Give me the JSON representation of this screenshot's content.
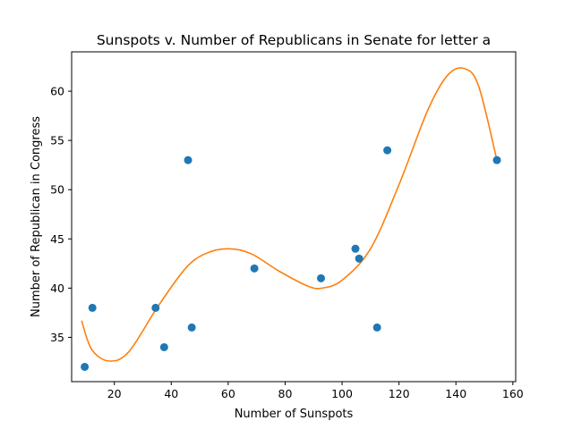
{
  "chart_data": {
    "type": "scatter",
    "title": "Sunspots v. Number of Republicans in Senate for letter a",
    "xlabel": "Number of Sunspots",
    "ylabel": "Number of Republican in Congress",
    "xlim": [
      5,
      161
    ],
    "ylim": [
      30.5,
      64
    ],
    "xticks": [
      20,
      40,
      60,
      80,
      100,
      120,
      140,
      160
    ],
    "yticks": [
      35,
      40,
      45,
      50,
      55,
      60
    ],
    "grid": false,
    "colors": {
      "points": "#1f77b4",
      "fit": "#ff7f0e"
    },
    "points": [
      {
        "x": 9.6,
        "y": 32
      },
      {
        "x": 12.3,
        "y": 38
      },
      {
        "x": 34.5,
        "y": 38
      },
      {
        "x": 37.5,
        "y": 34
      },
      {
        "x": 45.9,
        "y": 53
      },
      {
        "x": 47.2,
        "y": 36
      },
      {
        "x": 69.2,
        "y": 42
      },
      {
        "x": 92.6,
        "y": 41
      },
      {
        "x": 104.7,
        "y": 44
      },
      {
        "x": 106.0,
        "y": 43
      },
      {
        "x": 112.3,
        "y": 36
      },
      {
        "x": 115.9,
        "y": 54
      },
      {
        "x": 154.4,
        "y": 53
      }
    ],
    "fit_curve": [
      {
        "x": 8.5,
        "y": 36.7
      },
      {
        "x": 12,
        "y": 33.8
      },
      {
        "x": 18,
        "y": 32.6
      },
      {
        "x": 25,
        "y": 33.5
      },
      {
        "x": 35,
        "y": 38.0
      },
      {
        "x": 45,
        "y": 42.0
      },
      {
        "x": 52,
        "y": 43.5
      },
      {
        "x": 60,
        "y": 44.0
      },
      {
        "x": 68,
        "y": 43.5
      },
      {
        "x": 78,
        "y": 41.7
      },
      {
        "x": 88,
        "y": 40.2
      },
      {
        "x": 93,
        "y": 40.0
      },
      {
        "x": 100,
        "y": 40.8
      },
      {
        "x": 110,
        "y": 44.0
      },
      {
        "x": 120,
        "y": 50.5
      },
      {
        "x": 130,
        "y": 58.0
      },
      {
        "x": 137,
        "y": 61.6
      },
      {
        "x": 143,
        "y": 62.3
      },
      {
        "x": 148,
        "y": 60.5
      },
      {
        "x": 154.4,
        "y": 53.0
      }
    ]
  }
}
